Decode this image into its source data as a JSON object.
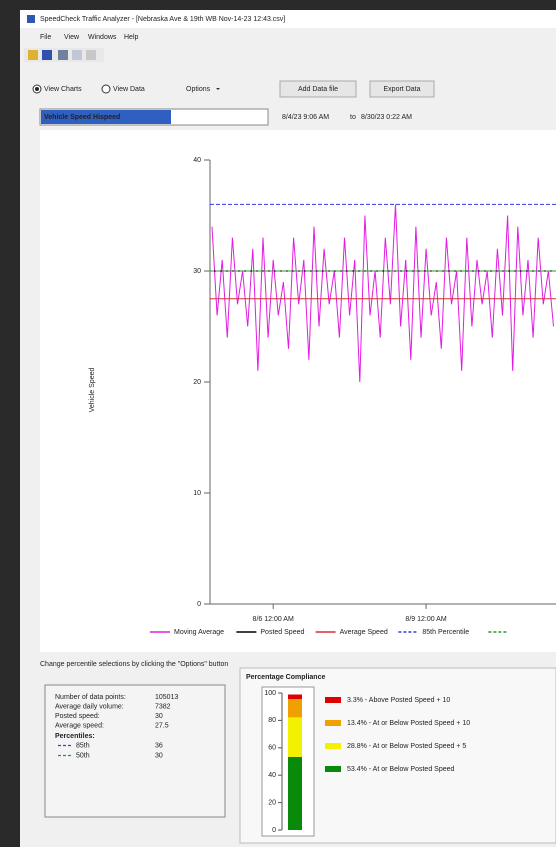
{
  "window": {
    "title": "SpeedCheck Traffic Analyzer - [Nebraska Ave & 19th WB Nov-14-23 12:43.csv]",
    "menu": [
      "File",
      "View",
      "Windows",
      "Help"
    ]
  },
  "toolbar": {
    "view_charts": "View Charts",
    "view_data": "View Data",
    "options": "Options",
    "add_data": "Add Data file",
    "export": "Export Data",
    "chart_select": "Vehicle Speed Hispeed",
    "date_from": "8/4/23 9:06 AM",
    "to": "to",
    "date_to": "8/30/23 0:22 AM"
  },
  "chart_data": [
    {
      "type": "line",
      "ylabel": "Vehicle Speed",
      "xlim": [
        4.76,
        11.55
      ],
      "xticks": [
        {
          "value": 6,
          "label": "8/6 12:00 AM"
        },
        {
          "value": 9,
          "label": "8/9 12:00 AM"
        }
      ],
      "ylim": [
        0,
        40
      ],
      "yticks": [
        0,
        10,
        20,
        30,
        40
      ],
      "x": [
        4.8,
        4.9,
        5.0,
        5.1,
        5.2,
        5.3,
        5.4,
        5.5,
        5.6,
        5.7,
        5.8,
        5.9,
        6.0,
        6.1,
        6.2,
        6.3,
        6.4,
        6.5,
        6.6,
        6.7,
        6.8,
        6.9,
        7.0,
        7.1,
        7.2,
        7.3,
        7.4,
        7.5,
        7.6,
        7.7,
        7.8,
        7.9,
        8.0,
        8.1,
        8.2,
        8.3,
        8.4,
        8.5,
        8.6,
        8.7,
        8.8,
        8.9,
        9.0,
        9.1,
        9.2,
        9.3,
        9.4,
        9.5,
        9.6,
        9.7,
        9.8,
        9.9,
        10.0,
        10.1,
        10.2,
        10.3,
        10.4,
        10.5,
        10.6,
        10.7,
        10.8,
        10.9,
        11.0,
        11.1,
        11.2,
        11.3,
        11.4,
        11.5
      ],
      "series": [
        {
          "name": "Moving Average",
          "color": "#e21ce2",
          "values": [
            34,
            26,
            31,
            24,
            33,
            27,
            30,
            25,
            32,
            21,
            33,
            24,
            31,
            26,
            29,
            23,
            33,
            27,
            31,
            22,
            34,
            25,
            32,
            27,
            30,
            24,
            33,
            26,
            31,
            20,
            35,
            26,
            30,
            24,
            33,
            27,
            36,
            25,
            31,
            22,
            34,
            24,
            32,
            26,
            29,
            23,
            33,
            27,
            30,
            21,
            33,
            25,
            31,
            27,
            30,
            24,
            32,
            26,
            35,
            21,
            34,
            26,
            31,
            24,
            33,
            27,
            30,
            25
          ]
        }
      ],
      "reference_lines": [
        {
          "name": "Posted Speed",
          "color": "#000000",
          "value": 30,
          "dashed": false
        },
        {
          "name": "Average Speed",
          "color": "#d4303a",
          "value": 27.5,
          "dashed": false
        },
        {
          "name": "85th Percentile",
          "color": "#3a3ae0",
          "value": 36,
          "dashed": true
        },
        {
          "color": "#20a020",
          "value": 30,
          "dashed": true
        }
      ]
    },
    {
      "type": "stacked_bar",
      "title": "Percentage Compliance",
      "ylim": [
        0,
        100
      ],
      "yticks": [
        0,
        20,
        40,
        60,
        80,
        100
      ],
      "segments": [
        {
          "value": 3.3,
          "label": "3.3% - Above Posted Speed + 10",
          "color": "#e00000"
        },
        {
          "value": 13.4,
          "label": "13.4% - At or Below Posted Speed + 10",
          "color": "#f0a000"
        },
        {
          "value": 28.8,
          "label": "28.8% - At or Below Posted Speed + 5",
          "color": "#f2f200"
        },
        {
          "value": 53.4,
          "label": "53.4% - At or Below Posted Speed",
          "color": "#0a8a0a"
        }
      ]
    }
  ],
  "stats": {
    "note": "Change percentile selections by clicking the \"Options\" button",
    "rows": [
      {
        "label": "Number of data points:",
        "value": "105013"
      },
      {
        "label": "Average daily volume:",
        "value": "7382"
      },
      {
        "label": "Posted speed:",
        "value": "30"
      },
      {
        "label": "Average speed:",
        "value": "27.5"
      }
    ],
    "percentiles_heading": "Percentiles:",
    "percentiles": [
      {
        "label": "85th",
        "value": "36",
        "color": "#3a3ae0"
      },
      {
        "label": "50th",
        "value": "30",
        "color": "#20a020"
      }
    ]
  }
}
